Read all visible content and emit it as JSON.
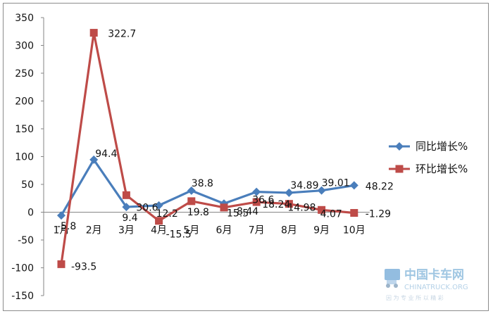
{
  "chart_data": {
    "type": "line",
    "categories": [
      "1月",
      "2月",
      "3月",
      "4月",
      "5月",
      "6月",
      "7月",
      "8月",
      "9月",
      "10月"
    ],
    "series": [
      {
        "name": "同比增长%",
        "color": "#4a7ebb",
        "marker": "diamond",
        "values": [
          -5.8,
          94.4,
          9.4,
          12.2,
          38.8,
          15.5,
          36.6,
          34.89,
          39.01,
          48.22
        ],
        "labels": [
          "-5.8",
          "94.4",
          "9.4",
          "12.2",
          "38.8",
          "15.5",
          "36.6",
          "34.89",
          "39.01",
          "48.22"
        ]
      },
      {
        "name": "环比增长%",
        "color": "#be4b48",
        "marker": "square",
        "values": [
          -93.5,
          322.7,
          30.6,
          -15.5,
          19.8,
          8.44,
          18.24,
          14.98,
          4.07,
          -1.29
        ],
        "labels": [
          "-93.5",
          "322.7",
          "30.6",
          "-15.5",
          "19.8",
          "8.44",
          "18.24",
          "14.98",
          "4.07",
          "-1.29"
        ]
      }
    ],
    "yticks": [
      "350",
      "300",
      "250",
      "200",
      "150",
      "100",
      "50",
      "0",
      "-50",
      "-100",
      "-150"
    ],
    "ylim": [
      -150,
      350
    ],
    "legend": "right",
    "grid": false
  },
  "watermark": {
    "title": "中国卡车网",
    "subtitle": "CHINATRUCK.ORG",
    "tagline": "因 为 专 业 所 以 精 彩"
  }
}
